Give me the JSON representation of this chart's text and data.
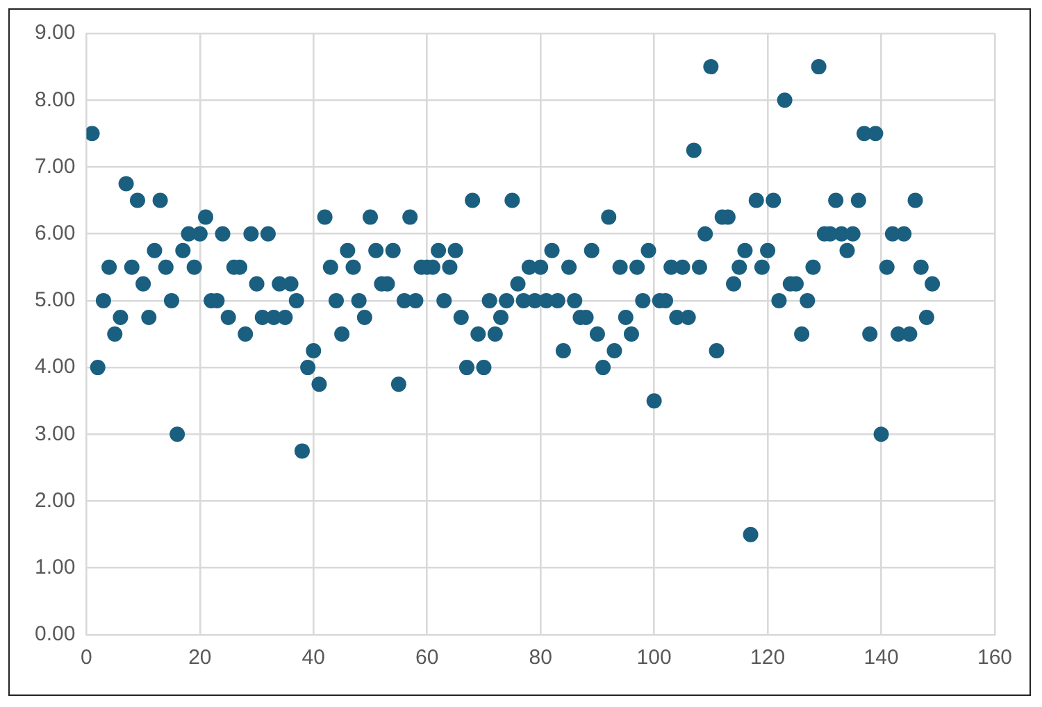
{
  "chart_data": {
    "type": "scatter",
    "x": [
      1,
      2,
      3,
      4,
      5,
      6,
      7,
      8,
      9,
      10,
      11,
      12,
      13,
      14,
      15,
      16,
      17,
      18,
      19,
      20,
      21,
      22,
      23,
      24,
      25,
      26,
      27,
      28,
      29,
      30,
      31,
      32,
      33,
      34,
      35,
      36,
      37,
      38,
      39,
      40,
      41,
      42,
      43,
      44,
      45,
      46,
      47,
      48,
      49,
      50,
      51,
      52,
      53,
      54,
      55,
      56,
      57,
      58,
      59,
      60,
      61,
      62,
      63,
      64,
      65,
      66,
      67,
      68,
      69,
      70,
      71,
      72,
      73,
      74,
      75,
      76,
      77,
      78,
      79,
      80,
      81,
      82,
      83,
      84,
      85,
      86,
      87,
      88,
      89,
      90,
      91,
      92,
      93,
      94,
      95,
      96,
      97,
      98,
      99,
      100,
      101,
      102,
      103,
      104,
      105,
      106,
      107,
      108,
      109,
      110,
      111,
      112,
      113,
      114,
      115,
      116,
      117,
      118,
      119,
      120,
      121,
      122,
      123,
      124,
      125,
      126,
      127,
      128,
      129,
      130,
      131,
      132,
      133,
      134,
      135,
      136,
      137,
      138,
      139,
      140,
      141,
      142,
      143,
      144,
      145,
      146,
      147,
      148,
      149
    ],
    "series": [
      {
        "color": "#1a5f7f",
        "values": [
          7.5,
          4.0,
          5.0,
          5.5,
          4.5,
          4.75,
          6.75,
          5.5,
          6.5,
          5.25,
          4.75,
          5.75,
          6.5,
          5.5,
          5.0,
          3.0,
          5.75,
          6.0,
          5.5,
          6.0,
          6.25,
          5.0,
          5.0,
          6.0,
          4.75,
          5.5,
          5.5,
          4.5,
          6.0,
          5.25,
          4.75,
          6.0,
          4.75,
          5.25,
          4.75,
          5.25,
          5.0,
          2.75,
          4.0,
          4.25,
          3.75,
          6.25,
          5.5,
          5.0,
          4.5,
          5.75,
          5.5,
          5.0,
          4.75,
          6.25,
          5.75,
          5.25,
          5.25,
          5.75,
          3.75,
          5.0,
          6.25,
          5.0,
          5.5,
          5.5,
          5.5,
          5.75,
          5.0,
          5.5,
          5.75,
          4.75,
          4.0,
          6.5,
          4.5,
          4.0,
          5.0,
          4.5,
          4.75,
          5.0,
          6.5,
          5.25,
          5.0,
          5.5,
          5.0,
          5.5,
          5.0,
          5.75,
          5.0,
          4.25,
          5.5,
          5.0,
          4.75,
          4.75,
          5.75,
          4.5,
          4.0,
          6.25,
          4.25,
          5.5,
          4.75,
          4.5,
          5.5,
          5.0,
          5.75,
          3.5,
          5.0,
          5.0,
          5.5,
          4.75,
          5.5,
          4.75,
          7.25,
          5.5,
          6.0,
          8.5,
          4.25,
          6.25,
          6.25,
          5.25,
          5.5,
          5.75,
          1.5,
          6.5,
          5.5,
          5.75,
          6.5,
          5.0,
          8.0,
          5.25,
          5.25,
          4.5,
          5.0,
          5.5,
          8.5,
          6.0,
          6.0,
          6.5,
          6.0,
          5.75,
          6.0,
          6.5,
          7.5,
          4.5,
          7.5,
          3.0,
          5.5,
          6.0,
          4.5,
          6.0,
          4.5,
          6.5,
          5.5,
          4.75,
          5.25
        ]
      }
    ],
    "xlim": [
      0,
      160
    ],
    "xticks": [
      0,
      20,
      40,
      60,
      80,
      100,
      120,
      140,
      160
    ],
    "ylim": [
      0,
      9
    ],
    "yticks": [
      {
        "value": 0,
        "label": "0.00"
      },
      {
        "value": 1,
        "label": "1.00"
      },
      {
        "value": 2,
        "label": "2.00"
      },
      {
        "value": 3,
        "label": "3.00"
      },
      {
        "value": 4,
        "label": "4.00"
      },
      {
        "value": 5,
        "label": "5.00"
      },
      {
        "value": 6,
        "label": "6.00"
      },
      {
        "value": 7,
        "label": "7.00"
      },
      {
        "value": 8,
        "label": "8.00"
      },
      {
        "value": 9,
        "label": "9.00"
      }
    ],
    "grid": true,
    "legend": false,
    "marker": "circle"
  }
}
